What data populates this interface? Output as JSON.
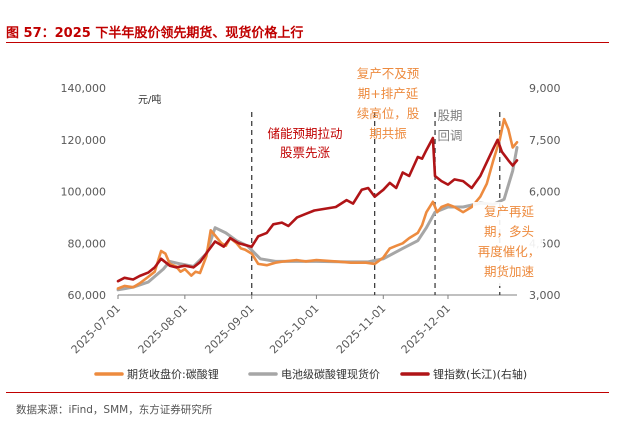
{
  "title": "图 57：2025 下半年股价领先期货、现货价格上行",
  "source": "数据来源：iFind，SMM，东方证券研究所",
  "colors": {
    "title": "#c00000",
    "futures": "#ed8b3f",
    "spot": "#a6a6a6",
    "index": "#b01417"
  },
  "chart_data": {
    "type": "line",
    "yunit_left": "元/吨",
    "yaxis_left": {
      "min": 60000,
      "max": 140000,
      "ticks": [
        "60,000",
        "80,000",
        "100,000",
        "120,000",
        "140,000"
      ]
    },
    "yaxis_right": {
      "min": 3000,
      "max": 9000,
      "ticks": [
        "3,000",
        "4,500",
        "6,000",
        "7,500",
        "9,000"
      ]
    },
    "x_ticks": [
      "2025-07-01",
      "2025-08-01",
      "2025-09-01",
      "2025-10-01",
      "2025-11-01",
      "2025-12-01"
    ],
    "grid": false,
    "legend_position": "bottom",
    "series": [
      {
        "name": "期货收盘价:碳酸锂",
        "axis": "left",
        "color": "#ed8b3f",
        "points": [
          [
            "2025-07-01",
            62500
          ],
          [
            "2025-07-04",
            63500
          ],
          [
            "2025-07-08",
            63000
          ],
          [
            "2025-07-11",
            64500
          ],
          [
            "2025-07-15",
            67000
          ],
          [
            "2025-07-18",
            69000
          ],
          [
            "2025-07-21",
            77000
          ],
          [
            "2025-07-23",
            76000
          ],
          [
            "2025-07-25",
            72000
          ],
          [
            "2025-07-28",
            71000
          ],
          [
            "2025-07-30",
            69000
          ],
          [
            "2025-08-01",
            70000
          ],
          [
            "2025-08-04",
            67500
          ],
          [
            "2025-08-06",
            69000
          ],
          [
            "2025-08-08",
            68500
          ],
          [
            "2025-08-11",
            75000
          ],
          [
            "2025-08-13",
            85000
          ],
          [
            "2025-08-15",
            83000
          ],
          [
            "2025-08-18",
            80000
          ],
          [
            "2025-08-20",
            79000
          ],
          [
            "2025-08-22",
            82000
          ],
          [
            "2025-08-25",
            80000
          ],
          [
            "2025-08-27",
            78000
          ],
          [
            "2025-08-29",
            77500
          ],
          [
            "2025-09-01",
            76000
          ],
          [
            "2025-09-04",
            72000
          ],
          [
            "2025-09-08",
            71500
          ],
          [
            "2025-09-12",
            72500
          ],
          [
            "2025-09-16",
            73000
          ],
          [
            "2025-09-22",
            73500
          ],
          [
            "2025-09-26",
            73000
          ],
          [
            "2025-10-01",
            73500
          ],
          [
            "2025-10-10",
            73000
          ],
          [
            "2025-10-17",
            72500
          ],
          [
            "2025-10-24",
            72500
          ],
          [
            "2025-10-28",
            72000
          ],
          [
            "2025-11-01",
            74500
          ],
          [
            "2025-11-04",
            78000
          ],
          [
            "2025-11-07",
            79000
          ],
          [
            "2025-11-10",
            80000
          ],
          [
            "2025-11-13",
            82000
          ],
          [
            "2025-11-17",
            84000
          ],
          [
            "2025-11-19",
            87000
          ],
          [
            "2025-11-21",
            92000
          ],
          [
            "2025-11-24",
            96000
          ],
          [
            "2025-11-26",
            92000
          ],
          [
            "2025-11-28",
            94000
          ],
          [
            "2025-12-01",
            95000
          ],
          [
            "2025-12-04",
            94000
          ],
          [
            "2025-12-08",
            92000
          ],
          [
            "2025-12-12",
            94000
          ],
          [
            "2025-12-16",
            98000
          ],
          [
            "2025-12-19",
            103000
          ],
          [
            "2025-12-22",
            112000
          ],
          [
            "2025-12-25",
            120000
          ],
          [
            "2025-12-27",
            128000
          ],
          [
            "2025-12-29",
            124000
          ],
          [
            "2025-12-31",
            117000
          ],
          [
            "2026-01-02",
            119000
          ]
        ]
      },
      {
        "name": "电池级碳酸锂现货价",
        "axis": "left",
        "color": "#a6a6a6",
        "points": [
          [
            "2025-07-01",
            62000
          ],
          [
            "2025-07-08",
            63000
          ],
          [
            "2025-07-15",
            65000
          ],
          [
            "2025-07-22",
            70000
          ],
          [
            "2025-07-25",
            73000
          ],
          [
            "2025-07-30",
            72000
          ],
          [
            "2025-08-05",
            71000
          ],
          [
            "2025-08-11",
            76000
          ],
          [
            "2025-08-15",
            86000
          ],
          [
            "2025-08-20",
            84000
          ],
          [
            "2025-08-25",
            81000
          ],
          [
            "2025-08-30",
            79000
          ],
          [
            "2025-09-05",
            74000
          ],
          [
            "2025-09-12",
            73000
          ],
          [
            "2025-09-20",
            73000
          ],
          [
            "2025-10-01",
            73000
          ],
          [
            "2025-10-15",
            72800
          ],
          [
            "2025-10-25",
            72800
          ],
          [
            "2025-11-01",
            74000
          ],
          [
            "2025-11-10",
            78000
          ],
          [
            "2025-11-17",
            81000
          ],
          [
            "2025-11-21",
            86000
          ],
          [
            "2025-11-25",
            92000
          ],
          [
            "2025-12-01",
            94000
          ],
          [
            "2025-12-08",
            94000
          ],
          [
            "2025-12-16",
            95500
          ],
          [
            "2025-12-22",
            95000
          ],
          [
            "2025-12-27",
            97000
          ],
          [
            "2025-12-31",
            108000
          ],
          [
            "2026-01-02",
            117000
          ]
        ]
      },
      {
        "name": "锂指数(长江)(右轴)",
        "axis": "right",
        "color": "#b01417",
        "points": [
          [
            "2025-07-01",
            3400
          ],
          [
            "2025-07-04",
            3500
          ],
          [
            "2025-07-08",
            3450
          ],
          [
            "2025-07-11",
            3550
          ],
          [
            "2025-07-15",
            3650
          ],
          [
            "2025-07-18",
            3800
          ],
          [
            "2025-07-21",
            4050
          ],
          [
            "2025-07-23",
            3950
          ],
          [
            "2025-07-25",
            3850
          ],
          [
            "2025-07-28",
            3800
          ],
          [
            "2025-08-01",
            3850
          ],
          [
            "2025-08-05",
            3800
          ],
          [
            "2025-08-08",
            3950
          ],
          [
            "2025-08-12",
            4300
          ],
          [
            "2025-08-15",
            4550
          ],
          [
            "2025-08-19",
            4400
          ],
          [
            "2025-08-22",
            4650
          ],
          [
            "2025-08-26",
            4500
          ],
          [
            "2025-08-29",
            4450
          ],
          [
            "2025-09-01",
            4400
          ],
          [
            "2025-09-04",
            4700
          ],
          [
            "2025-09-08",
            4800
          ],
          [
            "2025-09-11",
            5050
          ],
          [
            "2025-09-15",
            5100
          ],
          [
            "2025-09-18",
            5000
          ],
          [
            "2025-09-22",
            5250
          ],
          [
            "2025-09-26",
            5350
          ],
          [
            "2025-09-30",
            5450
          ],
          [
            "2025-10-10",
            5550
          ],
          [
            "2025-10-15",
            5750
          ],
          [
            "2025-10-18",
            5650
          ],
          [
            "2025-10-22",
            6050
          ],
          [
            "2025-10-25",
            6100
          ],
          [
            "2025-10-28",
            5850
          ],
          [
            "2025-11-01",
            6050
          ],
          [
            "2025-11-04",
            6250
          ],
          [
            "2025-11-07",
            6100
          ],
          [
            "2025-11-10",
            6550
          ],
          [
            "2025-11-13",
            6450
          ],
          [
            "2025-11-17",
            7000
          ],
          [
            "2025-11-19",
            6950
          ],
          [
            "2025-11-21",
            7200
          ],
          [
            "2025-11-24",
            7550
          ],
          [
            "2025-11-25",
            6450
          ],
          [
            "2025-11-28",
            6300
          ],
          [
            "2025-12-01",
            6200
          ],
          [
            "2025-12-04",
            6350
          ],
          [
            "2025-12-08",
            6300
          ],
          [
            "2025-12-12",
            6100
          ],
          [
            "2025-12-16",
            6450
          ],
          [
            "2025-12-19",
            6850
          ],
          [
            "2025-12-22",
            7250
          ],
          [
            "2025-12-24",
            7500
          ],
          [
            "2025-12-26",
            7150
          ],
          [
            "2025-12-29",
            6900
          ],
          [
            "2025-12-31",
            6750
          ],
          [
            "2026-01-02",
            6900
          ]
        ]
      }
    ],
    "vlines": [
      "2025-09-01",
      "2025-10-28",
      "2025-11-25",
      "2025-12-25"
    ],
    "annotations": [
      {
        "lines": [
          "储能预期拉动",
          "股票先涨"
        ],
        "color": "#c00000"
      },
      {
        "lines": [
          "复产不及预",
          "期+排产延",
          "续高位，股",
          "期共振"
        ],
        "color": "#ed8b3f"
      },
      {
        "lines": [
          "股期",
          "回调"
        ],
        "color": "#808080"
      },
      {
        "lines": [
          "复产再延",
          "期，多头",
          "再度催化，",
          "期货加速"
        ],
        "color": "#ed8b3f"
      }
    ]
  }
}
